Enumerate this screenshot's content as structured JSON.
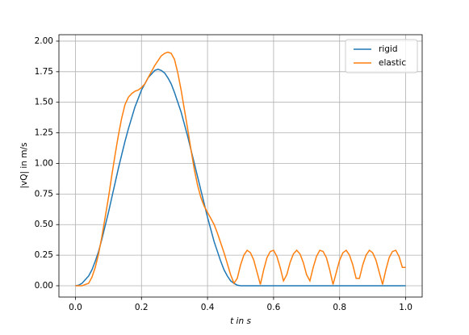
{
  "chart_data": {
    "type": "line",
    "xlabel": "t in s",
    "ylabel": "|vQ| in m/s",
    "x": [
      0,
      0.01,
      0.02,
      0.03,
      0.04,
      0.05,
      0.06,
      0.07,
      0.08,
      0.09,
      0.1,
      0.11,
      0.12,
      0.13,
      0.14,
      0.15,
      0.16,
      0.17,
      0.18,
      0.19,
      0.2,
      0.21,
      0.22,
      0.23,
      0.24,
      0.25,
      0.26,
      0.27,
      0.28,
      0.29,
      0.3,
      0.31,
      0.32,
      0.33,
      0.34,
      0.35,
      0.36,
      0.37,
      0.38,
      0.39,
      0.4,
      0.41,
      0.42,
      0.43,
      0.44,
      0.45,
      0.46,
      0.47,
      0.48,
      0.49,
      0.5,
      0.51,
      0.52,
      0.53,
      0.54,
      0.55,
      0.56,
      0.57,
      0.58,
      0.59,
      0.6,
      0.61,
      0.62,
      0.63,
      0.64,
      0.65,
      0.66,
      0.67,
      0.68,
      0.69,
      0.7,
      0.71,
      0.72,
      0.73,
      0.74,
      0.75,
      0.76,
      0.77,
      0.78,
      0.79,
      0.8,
      0.81,
      0.82,
      0.83,
      0.84,
      0.85,
      0.86,
      0.87,
      0.88,
      0.89,
      0.9,
      0.91,
      0.92,
      0.93,
      0.94,
      0.95,
      0.96,
      0.97,
      0.98,
      0.99,
      1.0
    ],
    "series": [
      {
        "name": "rigid",
        "color": "#1f77b4",
        "values": [
          0,
          0.005,
          0.02,
          0.05,
          0.08,
          0.13,
          0.2,
          0.28,
          0.38,
          0.49,
          0.6,
          0.72,
          0.84,
          0.96,
          1.07,
          1.18,
          1.28,
          1.37,
          1.46,
          1.53,
          1.6,
          1.65,
          1.7,
          1.73,
          1.76,
          1.77,
          1.76,
          1.74,
          1.7,
          1.65,
          1.58,
          1.5,
          1.42,
          1.32,
          1.22,
          1.11,
          1.0,
          0.89,
          0.78,
          0.67,
          0.56,
          0.46,
          0.36,
          0.28,
          0.2,
          0.13,
          0.08,
          0.04,
          0.02,
          0.005,
          0,
          0,
          0,
          0,
          0,
          0,
          0,
          0,
          0,
          0,
          0,
          0,
          0,
          0,
          0,
          0,
          0,
          0,
          0,
          0,
          0,
          0,
          0,
          0,
          0,
          0,
          0,
          0,
          0,
          0,
          0,
          0,
          0,
          0,
          0,
          0,
          0,
          0,
          0,
          0,
          0,
          0,
          0,
          0,
          0,
          0,
          0,
          0,
          0,
          0,
          0
        ]
      },
      {
        "name": "elastic",
        "color": "#ff7f0e",
        "values": [
          0,
          0,
          0,
          0.01,
          0.02,
          0.07,
          0.15,
          0.26,
          0.4,
          0.56,
          0.72,
          0.9,
          1.07,
          1.23,
          1.37,
          1.48,
          1.54,
          1.57,
          1.59,
          1.6,
          1.62,
          1.65,
          1.7,
          1.75,
          1.8,
          1.84,
          1.88,
          1.9,
          1.91,
          1.9,
          1.85,
          1.74,
          1.6,
          1.44,
          1.28,
          1.11,
          0.95,
          0.82,
          0.72,
          0.65,
          0.6,
          0.55,
          0.5,
          0.43,
          0.35,
          0.27,
          0.18,
          0.09,
          0.02,
          0.06,
          0.17,
          0.25,
          0.29,
          0.27,
          0.21,
          0.11,
          0.01,
          0.13,
          0.23,
          0.28,
          0.29,
          0.24,
          0.15,
          0.04,
          0.09,
          0.19,
          0.26,
          0.29,
          0.26,
          0.19,
          0.09,
          0.04,
          0.15,
          0.24,
          0.29,
          0.28,
          0.23,
          0.13,
          0.01,
          0.11,
          0.21,
          0.27,
          0.29,
          0.25,
          0.17,
          0.06,
          0.06,
          0.17,
          0.25,
          0.29,
          0.27,
          0.21,
          0.11,
          0.01,
          0.13,
          0.23,
          0.28,
          0.29,
          0.24,
          0.15,
          0.15
        ]
      }
    ],
    "xlim": [
      -0.05,
      1.05
    ],
    "ylim": [
      -0.0925,
      2.0525
    ],
    "xticks": [
      {
        "value": 0,
        "label": "0.0"
      },
      {
        "value": 0.2,
        "label": "0.2"
      },
      {
        "value": 0.4,
        "label": "0.4"
      },
      {
        "value": 0.6,
        "label": "0.6"
      },
      {
        "value": 0.8,
        "label": "0.8"
      },
      {
        "value": 1,
        "label": "1.0"
      }
    ],
    "yticks": [
      {
        "value": 0,
        "label": "0.00"
      },
      {
        "value": 0.25,
        "label": "0.25"
      },
      {
        "value": 0.5,
        "label": "0.50"
      },
      {
        "value": 0.75,
        "label": "0.75"
      },
      {
        "value": 1,
        "label": "1.00"
      },
      {
        "value": 1.25,
        "label": "1.25"
      },
      {
        "value": 1.5,
        "label": "1.50"
      },
      {
        "value": 1.75,
        "label": "1.75"
      },
      {
        "value": 2,
        "label": "2.00"
      }
    ],
    "grid": true,
    "legend": "upper-right"
  }
}
